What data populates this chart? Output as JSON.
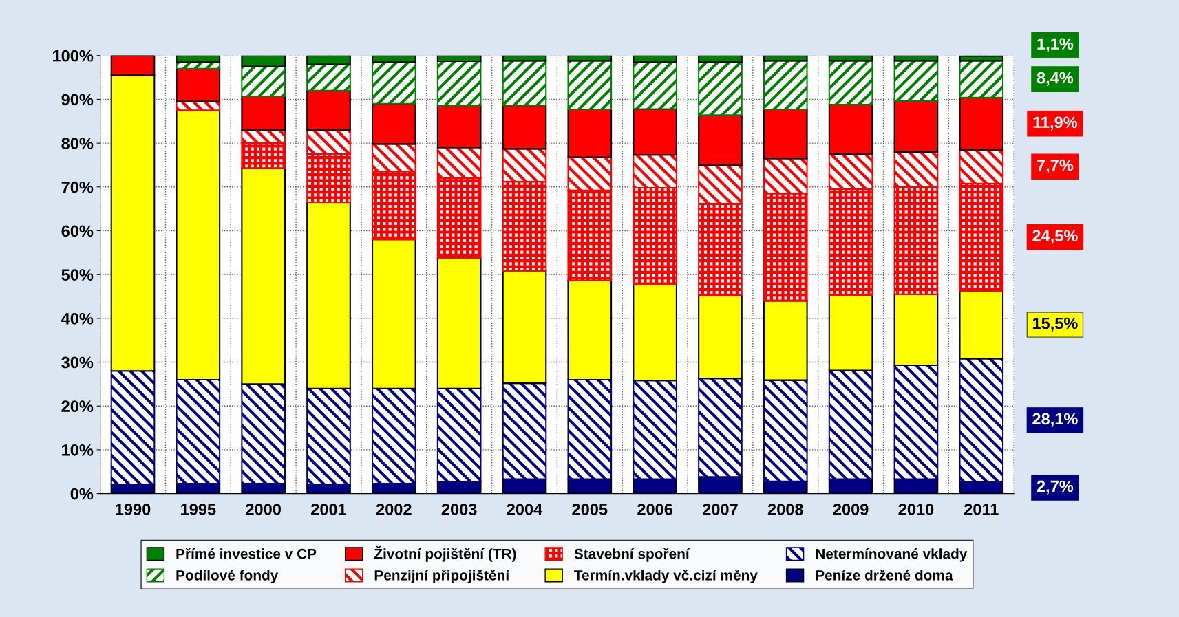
{
  "chart_data": {
    "type": "bar",
    "stacked": true,
    "categories": [
      "1990",
      "1995",
      "2000",
      "2001",
      "2002",
      "2003",
      "2004",
      "2005",
      "2006",
      "2007",
      "2008",
      "2009",
      "2010",
      "2011"
    ],
    "series": [
      {
        "name": "Peníze držené doma",
        "color": "#000080",
        "values": [
          2.1,
          2.3,
          2.3,
          2.0,
          2.3,
          2.7,
          3.3,
          3.3,
          3.3,
          3.8,
          2.8,
          3.3,
          3.3,
          2.7
        ]
      },
      {
        "name": "Netermínované vklady",
        "color": "#000080",
        "values": [
          25.9,
          23.7,
          22.7,
          22.0,
          21.7,
          21.3,
          21.9,
          22.7,
          22.5,
          22.5,
          23.1,
          24.8,
          26.0,
          28.1
        ]
      },
      {
        "name": "Termín.vklady vč.cizí měny",
        "color": "#ffff00",
        "values": [
          67.5,
          61.5,
          49.3,
          42.5,
          34.0,
          29.8,
          25.6,
          22.7,
          22.0,
          18.9,
          18.1,
          17.2,
          16.2,
          15.5
        ]
      },
      {
        "name": "Stavební spoření",
        "color": "#ff0000",
        "values": [
          0,
          0,
          5.7,
          11.0,
          15.5,
          18.2,
          20.4,
          20.5,
          22.0,
          21.0,
          24.5,
          24.2,
          24.5,
          24.5
        ]
      },
      {
        "name": "Penzijní připojištění",
        "color": "#ff0000",
        "values": [
          0,
          2.0,
          3.0,
          5.5,
          6.3,
          7.0,
          7.5,
          7.6,
          7.5,
          8.8,
          8.0,
          8.0,
          8.0,
          7.7
        ]
      },
      {
        "name": "Životní pojištění (TR)",
        "color": "#ff0000",
        "values": [
          4.5,
          7.5,
          7.7,
          9.0,
          9.2,
          9.5,
          9.9,
          10.9,
          10.5,
          11.4,
          11.2,
          11.3,
          11.6,
          11.9
        ]
      },
      {
        "name": "Podílové fondy",
        "color": "#008000",
        "values": [
          0,
          1.5,
          6.8,
          6.0,
          9.5,
          10.2,
          10.2,
          11.1,
          10.7,
          12.1,
          11.1,
          10.0,
          9.2,
          8.4
        ]
      },
      {
        "name": "Přímé investice v CP",
        "color": "#008000",
        "values": [
          0,
          1.5,
          2.5,
          2.0,
          1.5,
          1.3,
          1.2,
          1.2,
          1.5,
          1.5,
          1.2,
          1.2,
          1.2,
          1.1
        ]
      }
    ],
    "ylim": [
      0,
      100
    ],
    "yticks": [
      {
        "value": 0,
        "label": "0%"
      },
      {
        "value": 10,
        "label": "10%"
      },
      {
        "value": 20,
        "label": "20%"
      },
      {
        "value": 30,
        "label": "30%"
      },
      {
        "value": 40,
        "label": "40%"
      },
      {
        "value": 50,
        "label": "50%"
      },
      {
        "value": 60,
        "label": "60%"
      },
      {
        "value": 70,
        "label": "70%"
      },
      {
        "value": 80,
        "label": "80%"
      },
      {
        "value": 90,
        "label": "90%"
      },
      {
        "value": 100,
        "label": "100%"
      }
    ],
    "annotations": [
      "1,1%",
      "8,4%",
      "11,9%",
      "7,7%",
      "24,5%",
      "15,5%",
      "28,1%",
      "2,7%"
    ],
    "grid": true,
    "legend": "bottom"
  }
}
